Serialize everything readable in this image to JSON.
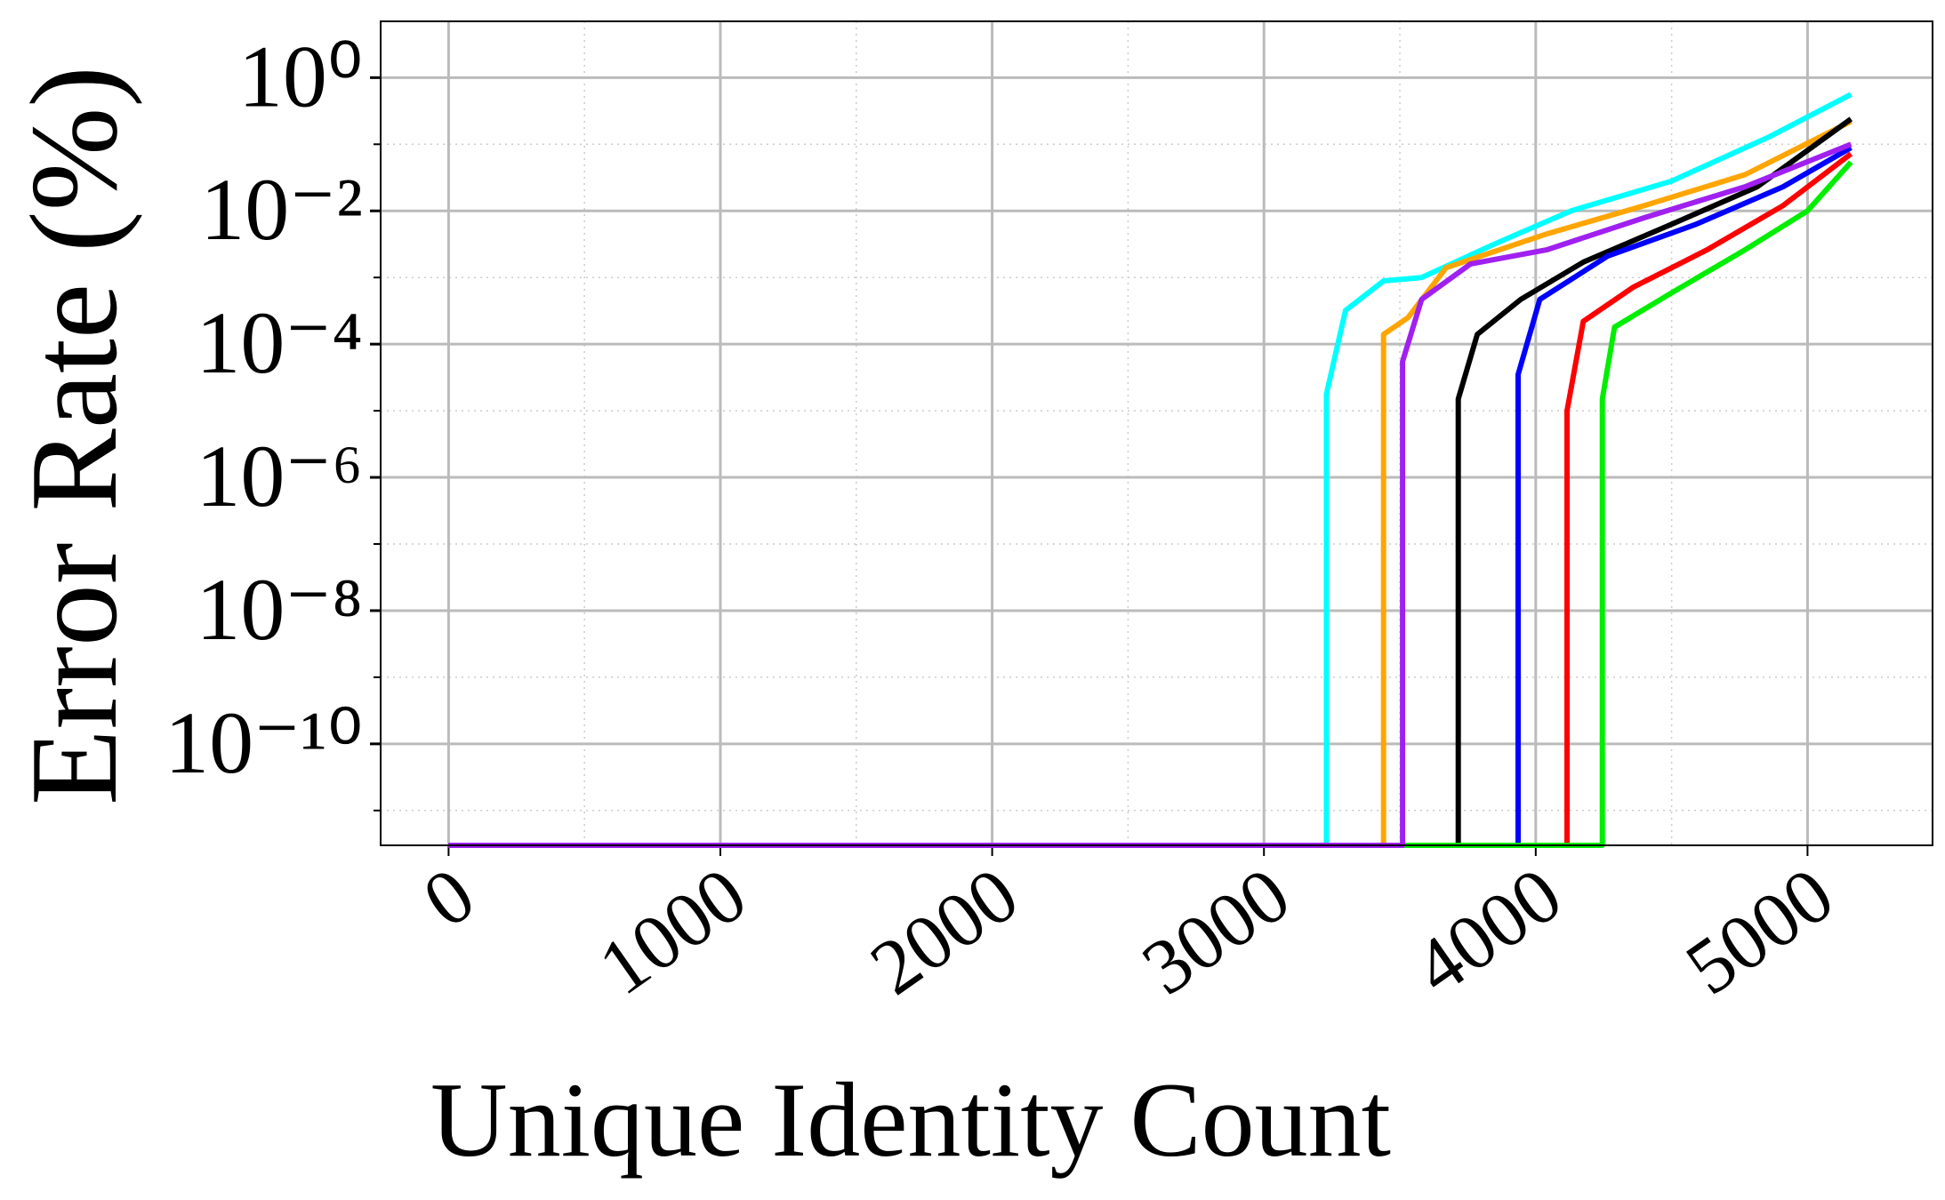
{
  "chart_data": {
    "type": "line",
    "xlabel": "Unique Identity Count",
    "ylabel": "Error Rate (%)",
    "xlim": [
      -250,
      5460
    ],
    "xticks": [
      0,
      1000,
      2000,
      3000,
      4000,
      5000
    ],
    "xminor": [
      500,
      1500,
      2500,
      3500,
      4500
    ],
    "ylim": [
      3e-12,
      7
    ],
    "yscale": "log",
    "yticks": [
      {
        "value": 1e-10,
        "label": "10⁻¹⁰"
      },
      {
        "value": 1e-08,
        "label": "10⁻⁸"
      },
      {
        "value": 1e-06,
        "label": "10⁻⁶"
      },
      {
        "value": 0.0001,
        "label": "10⁻⁴"
      },
      {
        "value": 0.01,
        "label": "10⁻²"
      },
      {
        "value": 1,
        "label": "10⁰"
      }
    ],
    "yminor": [
      1e-11,
      1e-09,
      1e-07,
      1e-05,
      0.001,
      0.1
    ],
    "grid": true,
    "series": [
      {
        "color": "#00ffff",
        "x": [
          0,
          3230,
          3230,
          3300,
          3440,
          3580,
          3850,
          4130,
          4500,
          4860,
          5160
        ],
        "values": [
          3e-12,
          3e-12,
          1.8e-05,
          0.00032,
          0.00089,
          0.001,
          0.0032,
          0.01,
          0.028,
          0.13,
          0.56
        ]
      },
      {
        "color": "#ffa500",
        "x": [
          0,
          3440,
          3440,
          3530,
          3670,
          4040,
          4400,
          4770,
          5160
        ],
        "values": [
          3e-12,
          3e-12,
          0.00014,
          0.00025,
          0.0014,
          0.0045,
          0.012,
          0.035,
          0.22
        ]
      },
      {
        "color": "#000000",
        "x": [
          0,
          3715,
          3715,
          3785,
          3945,
          4175,
          4500,
          4815,
          5160
        ],
        "values": [
          3e-12,
          3e-12,
          1.5e-05,
          0.00014,
          0.00047,
          0.0017,
          0.0063,
          0.023,
          0.24
        ]
      },
      {
        "color": "#0000ff",
        "x": [
          0,
          3935,
          3935,
          4015,
          4265,
          4590,
          4910,
          5160
        ],
        "values": [
          3e-12,
          3e-12,
          3.5e-05,
          0.00047,
          0.0021,
          0.0063,
          0.023,
          0.089
        ]
      },
      {
        "color": "#ff0000",
        "x": [
          0,
          4115,
          4115,
          4175,
          4360,
          4630,
          4910,
          5160
        ],
        "values": [
          3e-12,
          3e-12,
          1e-05,
          0.00022,
          0.00072,
          0.0026,
          0.012,
          0.072
        ]
      },
      {
        "color": "#00ee00",
        "x": [
          0,
          4245,
          4245,
          4290,
          4500,
          4770,
          5000,
          5160
        ],
        "values": [
          3e-12,
          3e-12,
          1.5e-05,
          0.00018,
          0.00059,
          0.0026,
          0.01,
          0.054
        ]
      },
      {
        "color": "#a020f0",
        "x": [
          0,
          3510,
          3510,
          3580,
          3760,
          4040,
          4400,
          4770,
          5160
        ],
        "values": [
          3e-12,
          3e-12,
          5.5e-05,
          0.00047,
          0.0016,
          0.0026,
          0.0079,
          0.023,
          0.1
        ]
      }
    ]
  }
}
